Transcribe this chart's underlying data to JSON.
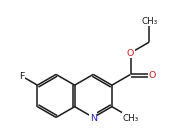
{
  "bg_color": "#ffffff",
  "bond_color": "#1a1a1a",
  "N_color": "#2222cc",
  "O_color": "#cc2222",
  "F_color": "#1a1a1a",
  "C_color": "#1a1a1a",
  "lw": 1.1,
  "dbo": 0.026,
  "s": 0.26,
  "cx_r": 0.2,
  "cy_r": -0.05,
  "fs": 6.8
}
